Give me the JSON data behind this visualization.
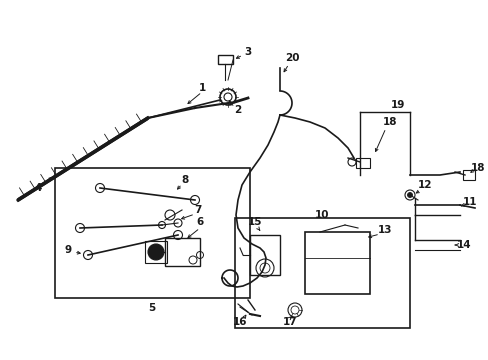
{
  "background_color": "#ffffff",
  "line_color": "#1a1a1a",
  "text_color": "#1a1a1a",
  "fig_width": 4.89,
  "fig_height": 3.6,
  "dpi": 100
}
